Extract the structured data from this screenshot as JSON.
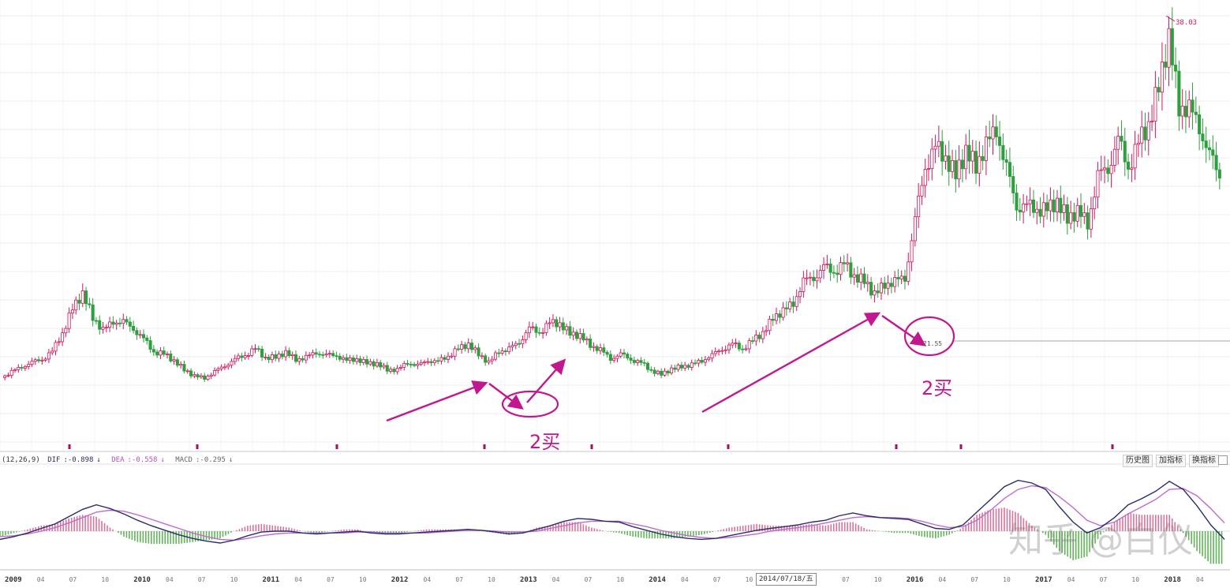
{
  "chart_data": [
    {
      "type": "line",
      "subtype": "candlestick",
      "title": "",
      "xlabel": "",
      "ylabel": "",
      "x_axis_labels": [
        "2009",
        "04",
        "07",
        "10",
        "2010",
        "04",
        "07",
        "10",
        "2011",
        "04",
        "07",
        "10",
        "2012",
        "04",
        "07",
        "10",
        "2013",
        "04",
        "07",
        "10",
        "2014",
        "04",
        "07",
        "10",
        "2015",
        "04",
        "07",
        "10",
        "2016",
        "04",
        "07",
        "10",
        "2017",
        "04",
        "07",
        "10",
        "2018",
        "04"
      ],
      "grid": true,
      "peak_label": "38.03",
      "reference_label": "21.55",
      "series": [
        {
          "values": [
            5.1,
            5.6,
            6.2,
            6.5,
            6.9,
            7.6,
            9.4,
            11.8,
            13.2,
            11.0,
            9.6,
            10.6,
            10.4,
            9.9,
            8.8,
            7.6,
            7.4,
            6.7,
            5.9,
            5.2,
            5.1,
            5.6,
            6.3,
            6.8,
            7.3,
            7.9,
            7.0,
            7.1,
            7.5,
            6.9,
            7.0,
            7.6,
            7.2,
            7.3,
            6.7,
            6.9,
            6.5,
            6.4,
            5.9,
            5.8,
            6.6,
            6.2,
            6.8,
            6.6,
            7.2,
            7.9,
            8.3,
            7.4,
            6.5,
            7.7,
            7.8,
            8.6,
            9.8,
            9.5,
            10.4,
            10.3,
            9.4,
            9.1,
            8.3,
            7.7,
            7.0,
            7.3,
            6.9,
            6.5,
            5.8,
            5.4,
            5.9,
            6.2,
            6.3,
            6.8,
            7.2,
            7.9,
            8.3,
            7.9,
            8.7,
            9.4,
            10.9,
            11.5,
            12.4,
            14.3,
            14.9,
            15.7,
            15.4,
            16.1,
            14.9,
            14.5,
            13.1,
            14.2,
            14.3,
            14.9,
            20.2,
            25.7,
            27.3,
            26.5,
            24.7,
            27.0,
            25.7,
            27.5,
            29.4,
            25.1,
            21.9,
            21.6,
            21.5,
            21.4,
            22.1,
            20.6,
            21.1,
            20.2,
            24.4,
            25.6,
            27.9,
            25.6,
            27.8,
            29.6,
            33.4,
            37.9,
            31.6,
            30.9,
            29.7,
            26.4,
            24.9
          ]
        }
      ]
    },
    {
      "type": "bar",
      "subtype": "macd",
      "title": "",
      "macd_params": "(12,26,9)",
      "series": [
        {
          "name": "DIF",
          "value_label": "-0.898",
          "values": [
            -0.9,
            -0.6,
            -0.2,
            0.3,
            0.8,
            1.6,
            2.4,
            2.9,
            2.5,
            1.9,
            1.2,
            0.6,
            0.1,
            -0.4,
            -0.8,
            -1.1,
            -1.3,
            -1.0,
            -0.5,
            -0.1,
            0.0,
            0.0,
            -0.2,
            -0.3,
            -0.2,
            -0.1,
            0.0,
            -0.2,
            -0.3,
            -0.3,
            -0.2,
            -0.1,
            0.0,
            0.1,
            0.2,
            0.1,
            -0.1,
            -0.3,
            -0.2,
            0.2,
            0.6,
            1.1,
            1.4,
            1.3,
            1.1,
            1.0,
            0.5,
            0.1,
            -0.3,
            -0.6,
            -0.8,
            -0.9,
            -0.8,
            -0.5,
            -0.2,
            0.1,
            0.3,
            0.5,
            0.7,
            1.0,
            1.2,
            1.7,
            2.0,
            1.7,
            1.5,
            1.4,
            1.3,
            0.8,
            0.3,
            0.2,
            0.7,
            2.1,
            3.5,
            4.9,
            5.6,
            5.3,
            4.6,
            2.7,
            1.0,
            -0.2,
            0.4,
            1.5,
            2.9,
            3.6,
            4.4,
            5.5,
            4.6,
            2.8,
            0.7,
            -0.9
          ]
        },
        {
          "name": "DEA",
          "value_label": "-0.558",
          "values": [
            -0.6,
            -0.5,
            -0.3,
            0.0,
            0.4,
            0.9,
            1.5,
            2.1,
            2.3,
            2.2,
            1.8,
            1.3,
            0.8,
            0.3,
            -0.2,
            -0.6,
            -0.9,
            -1.0,
            -0.8,
            -0.5,
            -0.3,
            -0.2,
            -0.2,
            -0.2,
            -0.2,
            -0.2,
            -0.1,
            -0.1,
            -0.2,
            -0.2,
            -0.2,
            -0.2,
            -0.1,
            0.0,
            0.1,
            0.1,
            0.0,
            -0.1,
            -0.1,
            0.0,
            0.3,
            0.6,
            0.9,
            1.1,
            1.1,
            1.1,
            0.8,
            0.5,
            0.1,
            -0.2,
            -0.5,
            -0.7,
            -0.8,
            -0.7,
            -0.5,
            -0.3,
            0.0,
            0.2,
            0.4,
            0.6,
            0.9,
            1.2,
            1.5,
            1.6,
            1.5,
            1.5,
            1.4,
            1.1,
            0.7,
            0.4,
            0.5,
            1.2,
            2.3,
            3.6,
            4.6,
            5.0,
            4.8,
            3.8,
            2.6,
            1.2,
            0.6,
            1.0,
            1.9,
            2.7,
            3.5,
            4.6,
            4.7,
            3.9,
            2.5,
            0.9
          ]
        },
        {
          "name": "MACD",
          "value_label": "-0.295"
        }
      ]
    }
  ],
  "annotations": {
    "buy_label": "2买",
    "date_box": "2014/07/18/五"
  },
  "toolbar": {
    "buttons": [
      "历史图",
      "加指标",
      "换指标"
    ]
  },
  "watermark": "知乎 @白仪",
  "colors": {
    "up": "#d4145a",
    "down": "#2e9e3e",
    "annotation": "#c2188f",
    "dif": "#2c2c6a",
    "dea": "#c06ad0",
    "hist_pos": "#d9739a",
    "hist_neg": "#63b35a",
    "grid": "#ececec",
    "ref_line": "#9aa7b8"
  }
}
